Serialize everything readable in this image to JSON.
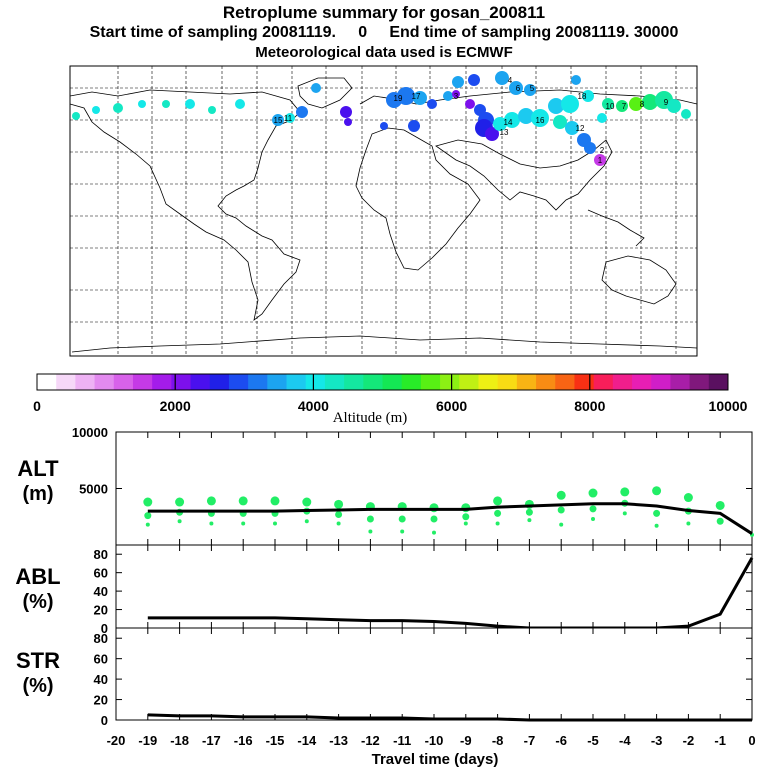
{
  "header": {
    "title": "Retroplume summary for gosan_200811",
    "sampling_line": "Start time of sampling 20081119.     0     End time of sampling 20081119. 30000",
    "met_line": "Meteorological data used is ECMWF"
  },
  "colorbar": {
    "label": "Altitude  (m)",
    "tick_labels": [
      "0",
      "2000",
      "4000",
      "6000",
      "8000",
      "10000"
    ],
    "colors": [
      "#ffffff",
      "#f6d8f8",
      "#eeb2f4",
      "#e38aef",
      "#d862ea",
      "#c53ae6",
      "#a41cea",
      "#7d10ec",
      "#4a10ee",
      "#2020e8",
      "#1c4cf0",
      "#1c78f0",
      "#1ca4f0",
      "#1ccaf0",
      "#14e8e8",
      "#14e8c4",
      "#14e8a0",
      "#14e87a",
      "#14e854",
      "#28ec28",
      "#58f014",
      "#8cf014",
      "#c0f014",
      "#eef014",
      "#f8dc14",
      "#f8b414",
      "#f88c14",
      "#f86414",
      "#f83014",
      "#f81e5a",
      "#f01e8c",
      "#e81eb4",
      "#d01ec8",
      "#a81ea8",
      "#80187c",
      "#5a1060"
    ]
  },
  "map": {
    "labeled_points": [
      "15",
      "19",
      "17",
      "11",
      "14",
      "16",
      "18",
      "13",
      "12",
      "10",
      "9",
      "8",
      "7",
      "6",
      "5",
      "4",
      "3",
      "2",
      "1"
    ]
  },
  "chart_data": [
    {
      "type": "scatter",
      "panel": "ALT",
      "ylabel": "ALT\n(m)",
      "ylim": [
        0,
        10000
      ],
      "yticks": [
        5000,
        10000
      ],
      "x": [
        -19,
        -18,
        -17,
        -16,
        -15,
        -14,
        -13,
        -12,
        -11,
        -10,
        -9,
        -8,
        -7,
        -6,
        -5,
        -4,
        -3,
        -2,
        -1,
        0
      ],
      "median_line": [
        3000,
        3000,
        3000,
        3000,
        3000,
        3050,
        3100,
        3150,
        3150,
        3150,
        3150,
        3350,
        3450,
        3550,
        3650,
        3650,
        3450,
        3050,
        2800,
        1000
      ],
      "points": [
        {
          "x": -19,
          "y": 3800
        },
        {
          "x": -19,
          "y": 2600
        },
        {
          "x": -19,
          "y": 1800
        },
        {
          "x": -18,
          "y": 3800
        },
        {
          "x": -18,
          "y": 2900
        },
        {
          "x": -18,
          "y": 2100
        },
        {
          "x": -17,
          "y": 3900
        },
        {
          "x": -17,
          "y": 2800
        },
        {
          "x": -17,
          "y": 1900
        },
        {
          "x": -16,
          "y": 3900
        },
        {
          "x": -16,
          "y": 2800
        },
        {
          "x": -16,
          "y": 1900
        },
        {
          "x": -15,
          "y": 3900
        },
        {
          "x": -15,
          "y": 2800
        },
        {
          "x": -15,
          "y": 1900
        },
        {
          "x": -14,
          "y": 3800
        },
        {
          "x": -14,
          "y": 3000
        },
        {
          "x": -14,
          "y": 2100
        },
        {
          "x": -13,
          "y": 3600
        },
        {
          "x": -13,
          "y": 2700
        },
        {
          "x": -13,
          "y": 1900
        },
        {
          "x": -12,
          "y": 3400
        },
        {
          "x": -12,
          "y": 2300
        },
        {
          "x": -12,
          "y": 1200
        },
        {
          "x": -11,
          "y": 3400
        },
        {
          "x": -11,
          "y": 2300
        },
        {
          "x": -11,
          "y": 1200
        },
        {
          "x": -10,
          "y": 3300
        },
        {
          "x": -10,
          "y": 2300
        },
        {
          "x": -10,
          "y": 1100
        },
        {
          "x": -9,
          "y": 3300
        },
        {
          "x": -9,
          "y": 2500
        },
        {
          "x": -9,
          "y": 1900
        },
        {
          "x": -8,
          "y": 3900
        },
        {
          "x": -8,
          "y": 2800
        },
        {
          "x": -8,
          "y": 1900
        },
        {
          "x": -7,
          "y": 3600
        },
        {
          "x": -7,
          "y": 2900
        },
        {
          "x": -7,
          "y": 2200
        },
        {
          "x": -6,
          "y": 4400
        },
        {
          "x": -6,
          "y": 3100
        },
        {
          "x": -6,
          "y": 1800
        },
        {
          "x": -5,
          "y": 4600
        },
        {
          "x": -5,
          "y": 3200
        },
        {
          "x": -5,
          "y": 2300
        },
        {
          "x": -4,
          "y": 4700
        },
        {
          "x": -4,
          "y": 3700
        },
        {
          "x": -4,
          "y": 2800
        },
        {
          "x": -3,
          "y": 4800
        },
        {
          "x": -3,
          "y": 2800
        },
        {
          "x": -3,
          "y": 1700
        },
        {
          "x": -2,
          "y": 4200
        },
        {
          "x": -2,
          "y": 3000
        },
        {
          "x": -2,
          "y": 1900
        },
        {
          "x": -1,
          "y": 3500
        },
        {
          "x": -1,
          "y": 2100
        },
        {
          "x": 0,
          "y": 900
        }
      ]
    },
    {
      "type": "line",
      "panel": "ABL",
      "ylabel": "ABL\n(%)",
      "ylim": [
        0,
        90
      ],
      "yticks": [
        0,
        20,
        40,
        60,
        80
      ],
      "x": [
        -19,
        -18,
        -17,
        -16,
        -15,
        -14,
        -13,
        -12,
        -11,
        -10,
        -9,
        -8,
        -7,
        -6,
        -5,
        -4,
        -3,
        -2,
        -1,
        0
      ],
      "values": [
        11,
        11,
        11,
        11,
        11,
        10,
        9,
        8,
        8,
        7,
        5,
        2,
        0,
        0,
        0,
        0,
        0,
        2,
        15,
        76
      ]
    },
    {
      "type": "line",
      "panel": "STR",
      "ylabel": "STR\n(%)",
      "ylim": [
        0,
        90
      ],
      "yticks": [
        0,
        20,
        40,
        60,
        80
      ],
      "x": [
        -19,
        -18,
        -17,
        -16,
        -15,
        -14,
        -13,
        -12,
        -11,
        -10,
        -9,
        -8,
        -7,
        -6,
        -5,
        -4,
        -3,
        -2,
        -1,
        0
      ],
      "values": [
        5,
        4,
        4,
        3,
        3,
        3,
        2,
        2,
        2,
        1,
        1,
        1,
        0,
        0,
        0,
        0,
        0,
        0,
        0,
        0
      ]
    }
  ],
  "xaxis": {
    "title": "Travel time (days)",
    "tick_labels": [
      "-20",
      "-19",
      "-18",
      "-17",
      "-16",
      "-15",
      "-14",
      "-13",
      "-12",
      "-11",
      "-10",
      "-9",
      "-8",
      "-7",
      "-6",
      "-5",
      "-4",
      "-3",
      "-2",
      "-1",
      "0"
    ],
    "range": [
      -20,
      0
    ]
  }
}
